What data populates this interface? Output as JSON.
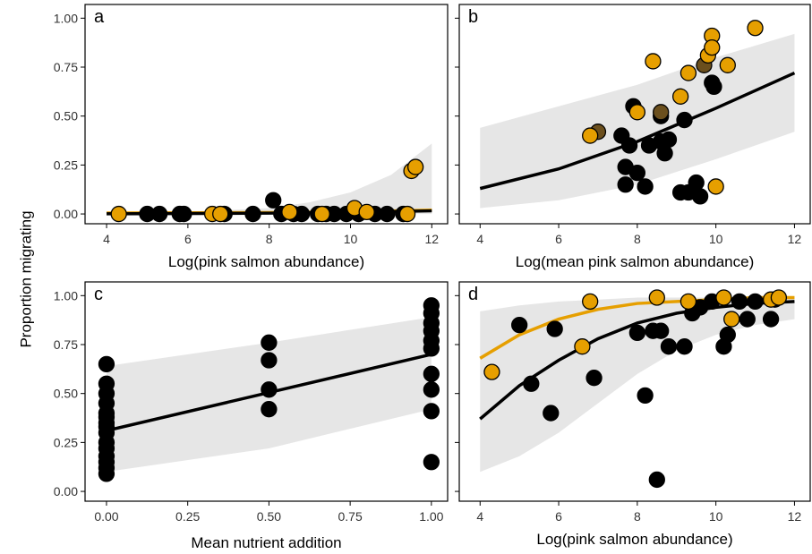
{
  "ylabel": "Proportion migrating",
  "chart_data": [
    {
      "type": "scatter",
      "label": "a",
      "xlabel": "Log(pink salmon abundance)",
      "xlim": [
        3.47,
        12.39
      ],
      "ylim": [
        -0.05,
        1.07
      ],
      "xticks": [
        4,
        6,
        8,
        10,
        12
      ],
      "yticks": [
        {
          "value": 0,
          "label": "0.00"
        },
        {
          "value": 0.25,
          "label": "0.25"
        },
        {
          "value": 0.5,
          "label": "0.50"
        },
        {
          "value": 0.75,
          "label": "0.75"
        },
        {
          "value": 1,
          "label": "1.00"
        }
      ],
      "ribbon": {
        "color": "#e6e6e6",
        "x": [
          4,
          6,
          8,
          9,
          10,
          11,
          12
        ],
        "lower": [
          0,
          0,
          0,
          0,
          0,
          0,
          0
        ],
        "upper": [
          0.01,
          0.01,
          0.03,
          0.06,
          0.11,
          0.2,
          0.36
        ]
      },
      "lines": [
        {
          "color": "#e69f00",
          "x": [
            4,
            8,
            10,
            12
          ],
          "values": [
            0.005,
            0.007,
            0.011,
            0.02
          ]
        },
        {
          "color": "#000000",
          "x": [
            4,
            8,
            10,
            12
          ],
          "values": [
            0.001,
            0.004,
            0.009,
            0.016
          ]
        }
      ],
      "series": [
        {
          "color": "#000000",
          "x": [
            5,
            5.3,
            5.8,
            5.9,
            6.9,
            7.6,
            8.1,
            8.3,
            8.6,
            8.8,
            9.2,
            9.4,
            9.6,
            9.9,
            10.2,
            10.6,
            10.9,
            11.3
          ],
          "values": [
            0,
            0,
            0,
            0,
            0,
            0,
            0.07,
            0,
            0,
            0,
            0,
            0,
            0,
            0,
            0,
            0,
            0,
            0
          ]
        },
        {
          "color": "#e69f00",
          "x": [
            4.3,
            6.6,
            6.8,
            8.5,
            9.3,
            10.1,
            10.4,
            11.4,
            11.5,
            11.6
          ],
          "values": [
            0,
            0,
            0,
            0.01,
            0,
            0.03,
            0.01,
            0,
            0.22,
            0.24
          ]
        }
      ]
    },
    {
      "type": "scatter",
      "label": "b",
      "xlabel": "Log(mean pink salmon abundance)",
      "xlim": [
        3.47,
        12.4
      ],
      "ylim": [
        -0.05,
        1.07
      ],
      "xticks": [
        4,
        6,
        8,
        10,
        12
      ],
      "yticks": [
        0,
        0.25,
        0.5,
        0.75,
        1
      ],
      "ribbon": {
        "color": "#e6e6e6",
        "x": [
          4,
          6,
          8,
          10,
          12
        ],
        "lower": [
          0.03,
          0.07,
          0.15,
          0.28,
          0.42
        ],
        "upper": [
          0.44,
          0.55,
          0.66,
          0.8,
          0.92
        ]
      },
      "lines": [
        {
          "color": "#000000",
          "x": [
            4,
            6,
            8,
            10,
            12
          ],
          "values": [
            0.13,
            0.23,
            0.37,
            0.54,
            0.72
          ]
        }
      ],
      "series": [
        {
          "color": "#000000",
          "x": [
            7.6,
            7.7,
            7.7,
            7.8,
            7.9,
            8.0,
            8.2,
            8.3,
            8.6,
            8.6,
            8.7,
            8.8,
            9.1,
            9.2,
            9.3,
            9.5,
            9.6,
            9.9,
            9.95
          ],
          "values": [
            0.4,
            0.24,
            0.15,
            0.35,
            0.55,
            0.21,
            0.14,
            0.35,
            0.5,
            0.37,
            0.31,
            0.38,
            0.11,
            0.48,
            0.11,
            0.16,
            0.09,
            0.67,
            0.65
          ]
        },
        {
          "color": "#6b4f1d",
          "x": [
            7.0,
            8.6,
            9.7
          ],
          "values": [
            0.42,
            0.52,
            0.76
          ]
        },
        {
          "color": "#e69f00",
          "x": [
            6.8,
            8.0,
            8.4,
            9.1,
            9.3,
            9.8,
            9.9,
            9.9,
            10.0,
            10.3,
            11.0
          ],
          "values": [
            0.4,
            0.52,
            0.78,
            0.6,
            0.72,
            0.81,
            0.91,
            0.85,
            0.14,
            0.76,
            0.95
          ]
        }
      ]
    },
    {
      "type": "scatter",
      "label": "c",
      "xlabel": "Mean nutrient addition",
      "xlim": [
        -0.066,
        1.05
      ],
      "ylim": [
        -0.05,
        1.07
      ],
      "xticks": [
        {
          "value": 0,
          "label": "0.00"
        },
        {
          "value": 0.25,
          "label": "0.25"
        },
        {
          "value": 0.5,
          "label": "0.50"
        },
        {
          "value": 0.75,
          "label": "0.75"
        },
        {
          "value": 1,
          "label": "1.00"
        }
      ],
      "yticks": [
        {
          "value": 0,
          "label": "0.00"
        },
        {
          "value": 0.25,
          "label": "0.25"
        },
        {
          "value": 0.5,
          "label": "0.50"
        },
        {
          "value": 0.75,
          "label": "0.75"
        },
        {
          "value": 1,
          "label": "1.00"
        }
      ],
      "ribbon": {
        "color": "#e6e6e6",
        "x": [
          0,
          0.5,
          1
        ],
        "lower": [
          0.1,
          0.22,
          0.42
        ],
        "upper": [
          0.64,
          0.76,
          0.89
        ]
      },
      "lines": [
        {
          "color": "#000000",
          "x": [
            0,
            1
          ],
          "values": [
            0.31,
            0.7
          ]
        }
      ],
      "series": [
        {
          "color": "#000000",
          "x": [
            0,
            0,
            0,
            0,
            0,
            0,
            0,
            0,
            0,
            0,
            0,
            0,
            0,
            0,
            0,
            0.5,
            0.5,
            0.5,
            0.5,
            1,
            1,
            1,
            1,
            1,
            1,
            1,
            1,
            1,
            1
          ],
          "values": [
            0.65,
            0.55,
            0.5,
            0.45,
            0.4,
            0.38,
            0.35,
            0.33,
            0.3,
            0.25,
            0.22,
            0.18,
            0.15,
            0.12,
            0.09,
            0.76,
            0.67,
            0.52,
            0.42,
            0.95,
            0.91,
            0.86,
            0.82,
            0.77,
            0.73,
            0.6,
            0.52,
            0.41,
            0.15
          ]
        }
      ]
    },
    {
      "type": "scatter",
      "label": "d",
      "xlabel": "Log(pink salmon abundance)",
      "xlim": [
        3.47,
        12.4
      ],
      "ylim": [
        -0.05,
        1.07
      ],
      "xticks": [
        4,
        6,
        8,
        10,
        12
      ],
      "yticks": [
        0,
        0.25,
        0.5,
        0.75,
        1
      ],
      "ribbon": {
        "color": "#e6e6e6",
        "x": [
          4,
          5,
          6,
          7,
          8,
          9,
          10,
          11,
          12
        ],
        "lower": [
          0.1,
          0.18,
          0.3,
          0.45,
          0.6,
          0.72,
          0.8,
          0.85,
          0.88
        ],
        "upper": [
          0.92,
          0.95,
          0.97,
          0.98,
          0.99,
          0.99,
          0.99,
          0.99,
          0.99
        ]
      },
      "lines": [
        {
          "color": "#000000",
          "x": [
            4,
            5,
            6,
            7,
            8,
            9,
            10,
            11,
            12
          ],
          "values": [
            0.37,
            0.54,
            0.67,
            0.78,
            0.86,
            0.91,
            0.94,
            0.96,
            0.97
          ]
        },
        {
          "color": "#e69f00",
          "x": [
            4,
            5,
            6,
            7,
            8,
            9,
            10,
            11,
            12
          ],
          "values": [
            0.68,
            0.8,
            0.88,
            0.93,
            0.96,
            0.97,
            0.98,
            0.99,
            0.99
          ]
        }
      ],
      "series": [
        {
          "color": "#000000",
          "x": [
            5,
            5.3,
            5.8,
            5.9,
            6.9,
            8.0,
            8.2,
            8.4,
            8.5,
            8.6,
            8.8,
            9.2,
            9.4,
            9.6,
            9.9,
            10.2,
            10.3,
            10.6,
            10.8,
            11.0,
            11.4,
            11.5
          ],
          "values": [
            0.85,
            0.55,
            0.4,
            0.83,
            0.58,
            0.81,
            0.49,
            0.82,
            0.06,
            0.82,
            0.74,
            0.74,
            0.91,
            0.94,
            0.97,
            0.74,
            0.8,
            0.97,
            0.88,
            0.97,
            0.88,
            0.98
          ]
        },
        {
          "color": "#e69f00",
          "x": [
            4.3,
            6.6,
            6.8,
            8.5,
            9.3,
            10.2,
            10.4,
            11.4,
            11.6
          ],
          "values": [
            0.61,
            0.74,
            0.97,
            0.99,
            0.97,
            0.99,
            0.88,
            0.98,
            0.99
          ]
        }
      ]
    }
  ]
}
